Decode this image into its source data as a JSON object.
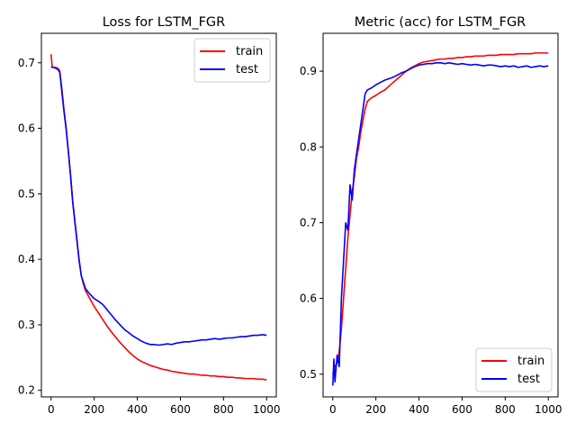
{
  "chart_data": [
    {
      "type": "line",
      "title": "Loss for LSTM_FGR",
      "xlabel": "",
      "ylabel": "",
      "xlim": [
        -45,
        1045
      ],
      "ylim": [
        0.19,
        0.745
      ],
      "xticks": [
        0,
        200,
        400,
        600,
        800,
        1000
      ],
      "yticks": [
        0.2,
        0.3,
        0.4,
        0.5,
        0.6,
        0.7
      ],
      "grid": false,
      "legend": "top-right",
      "series": [
        {
          "name": "train",
          "color": "#ff0000",
          "x": [
            0,
            5,
            10,
            20,
            30,
            40,
            50,
            60,
            70,
            80,
            90,
            100,
            110,
            120,
            130,
            140,
            150,
            160,
            180,
            200,
            220,
            240,
            260,
            280,
            300,
            320,
            340,
            360,
            380,
            400,
            420,
            440,
            460,
            480,
            500,
            520,
            540,
            560,
            580,
            600,
            620,
            640,
            660,
            680,
            700,
            720,
            740,
            760,
            780,
            800,
            820,
            840,
            860,
            880,
            900,
            920,
            940,
            960,
            980,
            1000
          ],
          "y": [
            0.713,
            0.694,
            0.693,
            0.693,
            0.692,
            0.688,
            0.66,
            0.628,
            0.6,
            0.565,
            0.53,
            0.49,
            0.46,
            0.43,
            0.4,
            0.375,
            0.362,
            0.352,
            0.34,
            0.328,
            0.318,
            0.308,
            0.298,
            0.289,
            0.281,
            0.273,
            0.266,
            0.259,
            0.253,
            0.248,
            0.244,
            0.241,
            0.238,
            0.236,
            0.234,
            0.232,
            0.231,
            0.229,
            0.228,
            0.227,
            0.226,
            0.225,
            0.225,
            0.224,
            0.223,
            0.223,
            0.222,
            0.222,
            0.221,
            0.221,
            0.22,
            0.22,
            0.219,
            0.219,
            0.218,
            0.218,
            0.218,
            0.217,
            0.217,
            0.216
          ]
        },
        {
          "name": "test",
          "color": "#0000ff",
          "x": [
            0,
            5,
            10,
            20,
            30,
            40,
            50,
            60,
            70,
            80,
            90,
            100,
            110,
            120,
            130,
            140,
            150,
            160,
            180,
            200,
            220,
            240,
            260,
            280,
            300,
            320,
            340,
            360,
            380,
            400,
            420,
            440,
            460,
            480,
            500,
            520,
            540,
            560,
            580,
            600,
            620,
            640,
            660,
            680,
            700,
            720,
            740,
            760,
            780,
            800,
            820,
            840,
            860,
            880,
            900,
            920,
            940,
            960,
            980,
            1000
          ],
          "y": [
            0.694,
            0.693,
            0.693,
            0.692,
            0.69,
            0.686,
            0.655,
            0.625,
            0.598,
            0.565,
            0.528,
            0.488,
            0.458,
            0.428,
            0.398,
            0.375,
            0.365,
            0.355,
            0.347,
            0.34,
            0.336,
            0.331,
            0.323,
            0.315,
            0.307,
            0.3,
            0.293,
            0.288,
            0.283,
            0.279,
            0.275,
            0.272,
            0.27,
            0.27,
            0.269,
            0.27,
            0.271,
            0.27,
            0.272,
            0.273,
            0.274,
            0.274,
            0.275,
            0.276,
            0.277,
            0.277,
            0.278,
            0.279,
            0.278,
            0.279,
            0.28,
            0.28,
            0.281,
            0.282,
            0.282,
            0.283,
            0.284,
            0.284,
            0.285,
            0.284
          ]
        }
      ]
    },
    {
      "type": "line",
      "title": "Metric (acc) for LSTM_FGR",
      "xlabel": "",
      "ylabel": "",
      "xlim": [
        -45,
        1045
      ],
      "ylim": [
        0.47,
        0.95
      ],
      "xticks": [
        0,
        200,
        400,
        600,
        800,
        1000
      ],
      "yticks": [
        0.5,
        0.6,
        0.7,
        0.8,
        0.9
      ],
      "grid": false,
      "legend": "bottom-right",
      "series": [
        {
          "name": "train",
          "color": "#ff0000",
          "x": [
            0,
            5,
            10,
            20,
            30,
            40,
            50,
            60,
            70,
            80,
            90,
            100,
            110,
            120,
            130,
            140,
            150,
            160,
            180,
            200,
            220,
            240,
            260,
            280,
            300,
            320,
            340,
            360,
            380,
            400,
            420,
            440,
            460,
            480,
            500,
            520,
            540,
            560,
            580,
            600,
            620,
            640,
            660,
            680,
            700,
            720,
            740,
            760,
            780,
            800,
            820,
            840,
            860,
            880,
            900,
            920,
            940,
            960,
            980,
            1000
          ],
          "y": [
            0.5,
            0.505,
            0.51,
            0.515,
            0.53,
            0.56,
            0.6,
            0.64,
            0.68,
            0.71,
            0.74,
            0.76,
            0.785,
            0.8,
            0.82,
            0.835,
            0.85,
            0.86,
            0.865,
            0.868,
            0.872,
            0.875,
            0.88,
            0.885,
            0.89,
            0.895,
            0.9,
            0.904,
            0.907,
            0.91,
            0.912,
            0.913,
            0.914,
            0.915,
            0.916,
            0.916,
            0.917,
            0.917,
            0.918,
            0.918,
            0.919,
            0.919,
            0.92,
            0.92,
            0.92,
            0.921,
            0.921,
            0.921,
            0.922,
            0.922,
            0.922,
            0.922,
            0.923,
            0.923,
            0.923,
            0.923,
            0.924,
            0.924,
            0.924,
            0.924
          ]
        },
        {
          "name": "test",
          "color": "#0000ff",
          "x": [
            0,
            5,
            10,
            20,
            30,
            40,
            50,
            60,
            70,
            80,
            90,
            100,
            110,
            120,
            130,
            140,
            150,
            160,
            180,
            200,
            220,
            240,
            260,
            280,
            300,
            320,
            340,
            360,
            380,
            400,
            420,
            440,
            460,
            480,
            500,
            520,
            540,
            560,
            580,
            600,
            620,
            640,
            660,
            680,
            700,
            720,
            740,
            760,
            780,
            800,
            820,
            840,
            860,
            880,
            900,
            920,
            940,
            960,
            980,
            1000
          ],
          "y": [
            0.485,
            0.52,
            0.49,
            0.525,
            0.51,
            0.6,
            0.65,
            0.7,
            0.69,
            0.75,
            0.73,
            0.77,
            0.79,
            0.81,
            0.83,
            0.85,
            0.87,
            0.875,
            0.878,
            0.882,
            0.885,
            0.888,
            0.89,
            0.892,
            0.895,
            0.898,
            0.9,
            0.903,
            0.906,
            0.908,
            0.909,
            0.91,
            0.91,
            0.911,
            0.911,
            0.91,
            0.911,
            0.91,
            0.909,
            0.91,
            0.909,
            0.908,
            0.909,
            0.908,
            0.907,
            0.908,
            0.908,
            0.907,
            0.906,
            0.907,
            0.906,
            0.907,
            0.905,
            0.906,
            0.907,
            0.905,
            0.906,
            0.907,
            0.906,
            0.907
          ]
        }
      ]
    }
  ]
}
